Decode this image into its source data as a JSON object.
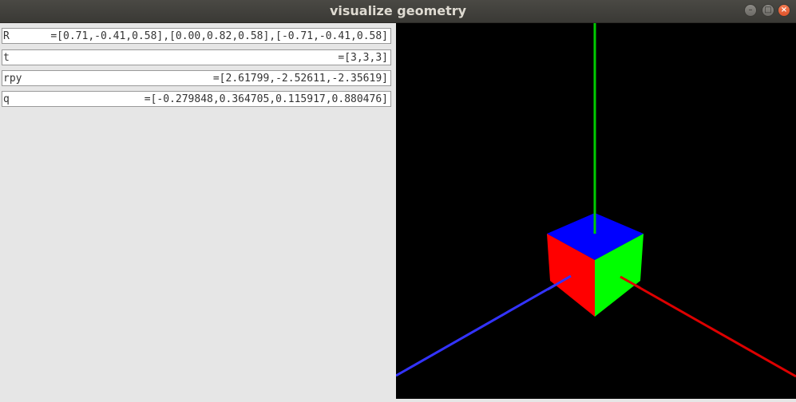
{
  "window": {
    "title": "visualize geometry"
  },
  "fields": [
    {
      "name": "R",
      "value": "=[0.71,-0.41,0.58],[0.00,0.82,0.58],[-0.71,-0.41,0.58]"
    },
    {
      "name": "t",
      "value": "=[3,3,3]"
    },
    {
      "name": "rpy",
      "value": "=[2.61799,-2.52611,-2.35619]"
    },
    {
      "name": "q",
      "value": "=[-0.279848,0.364705,0.115917,0.880476]"
    }
  ],
  "colors": {
    "viewport_background": "#000000",
    "axis_x": "#dd0000",
    "axis_y": "#00cc00",
    "axis_z": "#3333ff",
    "cube_top": "#0000ff",
    "cube_left": "#ff0000",
    "cube_right": "#00ff00"
  }
}
